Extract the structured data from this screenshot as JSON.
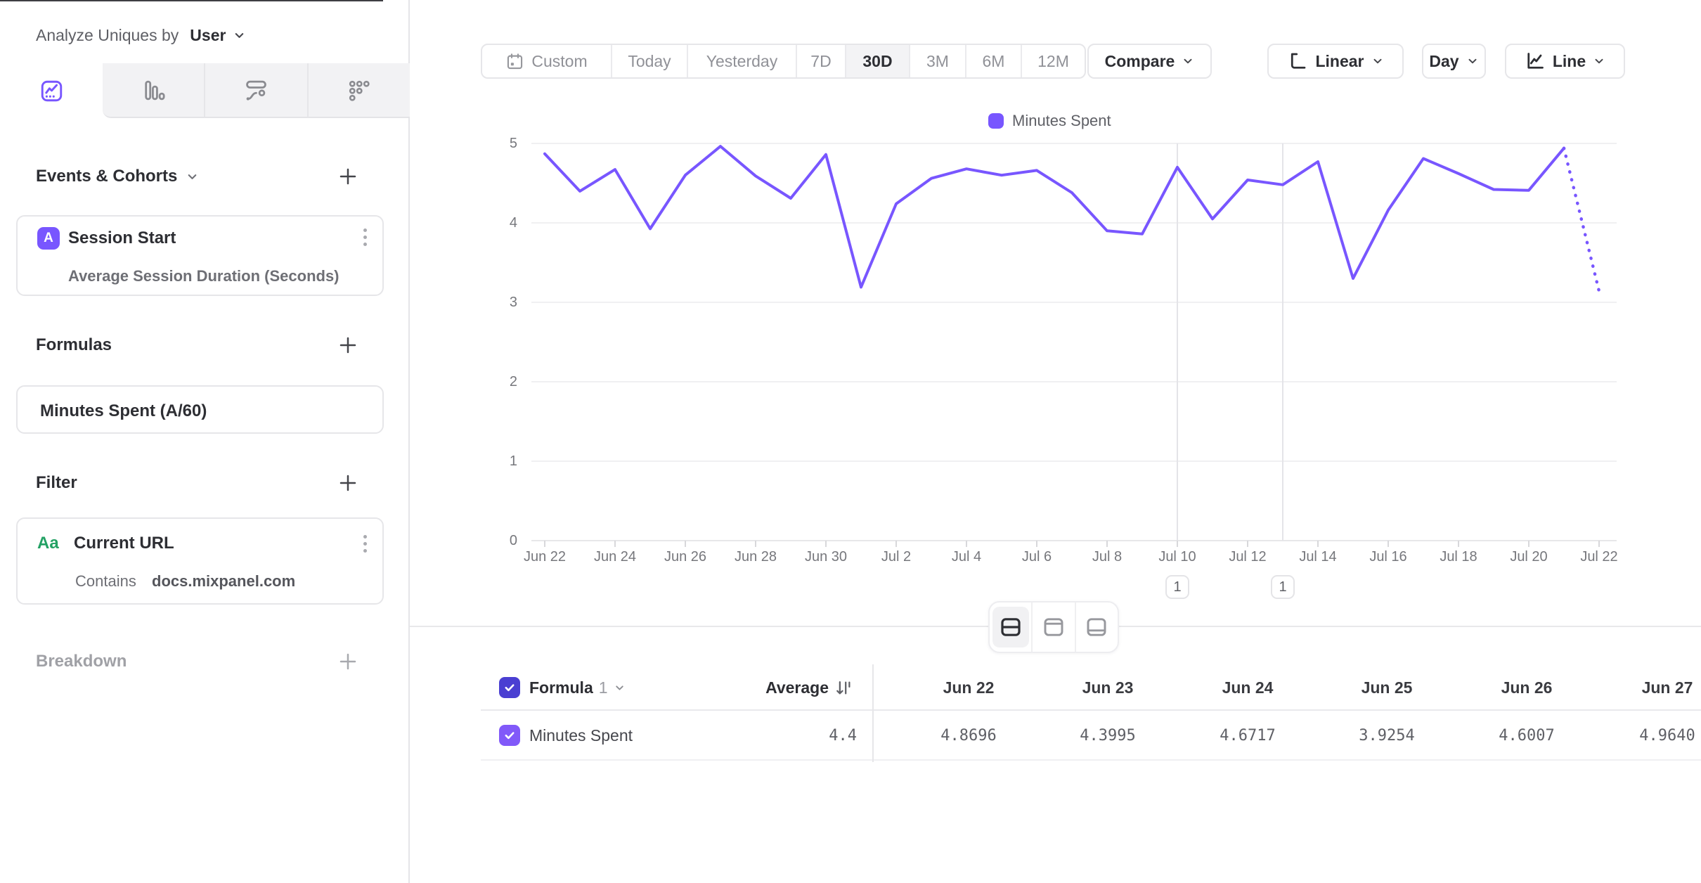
{
  "colors": {
    "accent": "#7856FF",
    "accent_dark": "#4A3FD2",
    "accent_light": "#8159F9",
    "green": "#23A164",
    "grid": "#EBEBEE",
    "baseline": "#DFDFE2"
  },
  "sidebar": {
    "analyze_label": "Analyze Uniques by",
    "analyze_value": "User",
    "tabs": [
      "insights",
      "bar",
      "flows",
      "retention"
    ],
    "events": {
      "title": "Events & Cohorts",
      "card": {
        "badge": "A",
        "title": "Session Start",
        "subtitle": "Average Session Duration (Seconds)"
      }
    },
    "formulas": {
      "title": "Formulas",
      "card_title": "Minutes Spent (A/60)"
    },
    "filter": {
      "title": "Filter",
      "card": {
        "badge": "Aa",
        "title": "Current URL",
        "operator": "Contains",
        "value": "docs.mixpanel.com"
      }
    },
    "breakdown": {
      "title": "Breakdown"
    }
  },
  "toolbar": {
    "date_ranges": [
      "Custom",
      "Today",
      "Yesterday",
      "7D",
      "30D",
      "3M",
      "6M",
      "12M"
    ],
    "active_range": "30D",
    "compare_label": "Compare",
    "scale_label": "Linear",
    "interval_label": "Day",
    "chart_type_label": "Line"
  },
  "chart_data": {
    "type": "line",
    "title": "",
    "legend": [
      "Minutes Spent"
    ],
    "legend_position": "top",
    "x": [
      "Jun 22",
      "Jun 23",
      "Jun 24",
      "Jun 25",
      "Jun 26",
      "Jun 27",
      "Jun 28",
      "Jun 29",
      "Jun 30",
      "Jul 1",
      "Jul 2",
      "Jul 3",
      "Jul 4",
      "Jul 5",
      "Jul 6",
      "Jul 7",
      "Jul 8",
      "Jul 9",
      "Jul 10",
      "Jul 11",
      "Jul 12",
      "Jul 13",
      "Jul 14",
      "Jul 15",
      "Jul 16",
      "Jul 17",
      "Jul 18",
      "Jul 19",
      "Jul 20",
      "Jul 21",
      "Jul 22"
    ],
    "x_tick_step": 2,
    "series": [
      {
        "name": "Minutes Spent",
        "values": [
          4.8696,
          4.3995,
          4.6717,
          3.9254,
          4.6007,
          4.964,
          4.59,
          4.31,
          4.86,
          3.19,
          4.24,
          4.56,
          4.68,
          4.6,
          4.66,
          4.38,
          3.9,
          3.86,
          4.7,
          4.05,
          4.54,
          4.48,
          4.77,
          3.3,
          4.16,
          4.81,
          4.62,
          4.42,
          4.41,
          4.94,
          3.14
        ],
        "dotted_from_index": 29
      }
    ],
    "ylim": [
      0,
      5
    ],
    "yticks": [
      0,
      1,
      2,
      3,
      4,
      5
    ],
    "grid": "horizontal",
    "annotations": [
      {
        "date": "Jul 10",
        "x_index": 18,
        "label": "1"
      },
      {
        "date": "Jul 13",
        "x_index": 21,
        "label": "1"
      }
    ]
  },
  "table": {
    "formula_label": "Formula",
    "formula_number": "1",
    "average_label": "Average",
    "columns": [
      "Jun 22",
      "Jun 23",
      "Jun 24",
      "Jun 25",
      "Jun 26",
      "Jun 27"
    ],
    "rows": [
      {
        "name": "Minutes Spent",
        "average": "4.4",
        "values": [
          "4.8696",
          "4.3995",
          "4.6717",
          "3.9254",
          "4.6007",
          "4.9640"
        ]
      }
    ]
  }
}
